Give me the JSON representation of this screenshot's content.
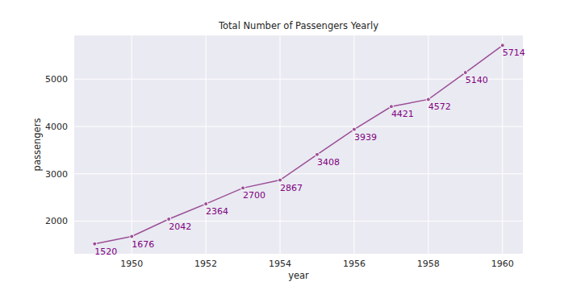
{
  "chart_data": {
    "type": "line",
    "title": "Total Number of Passengers Yearly",
    "x_label": "year",
    "y_label": "passengers",
    "x": [
      1949,
      1950,
      1951,
      1952,
      1953,
      1954,
      1955,
      1956,
      1957,
      1958,
      1959,
      1960
    ],
    "values": [
      1520,
      1676,
      2042,
      2364,
      2700,
      2867,
      3408,
      3939,
      4421,
      4572,
      5140,
      5714
    ],
    "color": "#9b4f96",
    "marker": "o",
    "data_labels": true,
    "grid": true,
    "xlim": [
      1948.45,
      1960.55
    ],
    "xticks": [
      1950,
      1952,
      1954,
      1956,
      1958,
      1960
    ],
    "ylim": [
      1310,
      5924
    ],
    "yticks": [
      2000,
      3000,
      4000,
      5000
    ]
  }
}
